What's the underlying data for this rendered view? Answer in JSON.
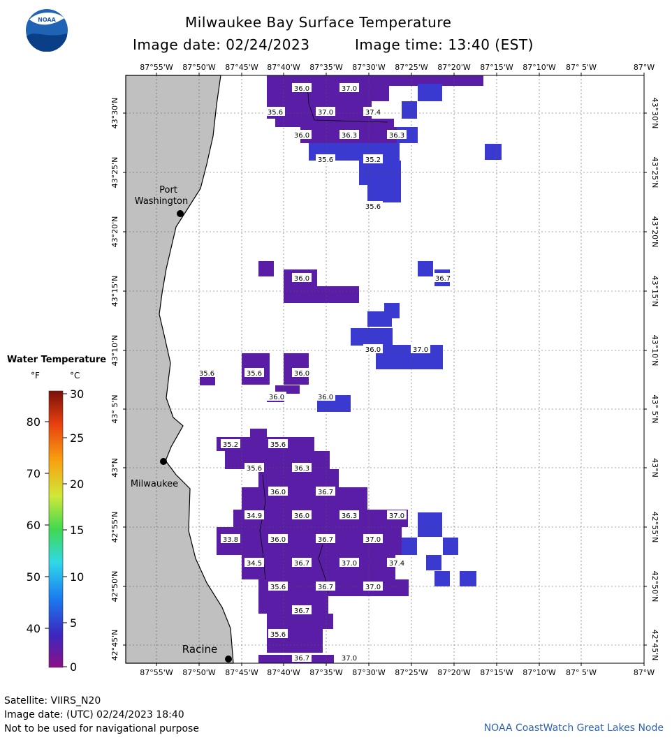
{
  "header": {
    "title": "Milwaukee Bay Surface Temperature",
    "image_date": "Image date: 02/24/2023",
    "image_time": "Image time: 13:40 (EST)"
  },
  "logo": {
    "text": "NOAA",
    "icon": "noaa-logo-icon"
  },
  "map": {
    "lon_labels": [
      "87°55'W",
      "87°50'W",
      "87°45'W",
      "87°40'W",
      "87°35'W",
      "87°30'W",
      "87°25'W",
      "87°20'W",
      "87°15'W",
      "87°10'W",
      "87° 5'W",
      "87°W"
    ],
    "lat_labels": [
      "43°30'N",
      "43°25'N",
      "43°20'N",
      "43°15'N",
      "43°10'N",
      "43° 5'N",
      "43°N",
      "42°55'N",
      "42°50'N",
      "42°45'N"
    ],
    "cities": [
      {
        "name": "Port\nWashington",
        "lines": [
          "Port",
          "Washington"
        ]
      },
      {
        "name": "Milwaukee",
        "lines": [
          "Milwaukee"
        ]
      },
      {
        "name": "Racine",
        "lines": [
          "Racine"
        ]
      }
    ],
    "temperature_labels": [
      "36.0",
      "37.0",
      "35.6",
      "37.0",
      "37.4",
      "36.0",
      "36.3",
      "36.3",
      "35.6",
      "35.2",
      "35.6",
      "36.0",
      "36.7",
      "36.0",
      "37.0",
      "35.6",
      "35.6",
      "36.0",
      "36.0",
      "36.0",
      "35.2",
      "35.6",
      "35.6",
      "36.3",
      "36.0",
      "36.7",
      "34.9",
      "36.0",
      "36.3",
      "37.0",
      "33.8",
      "36.0",
      "36.7",
      "37.0",
      "34.5",
      "36.7",
      "37.0",
      "37.4",
      "35.6",
      "36.7",
      "37.0",
      "36.7",
      "35.6",
      "36.7",
      "37.0"
    ],
    "colors": {
      "land": "#c0c0c0",
      "water": "#ffffff",
      "grid": "#555555",
      "sst_cold": "#5a1ea6",
      "sst_warm": "#3a3ad0"
    }
  },
  "colorbar": {
    "title": "Water Temperature",
    "unit_f": "°F",
    "unit_c": "°C",
    "f_ticks": [
      "80",
      "70",
      "60",
      "50",
      "40"
    ],
    "c_ticks": [
      "30",
      "25",
      "20",
      "15",
      "10",
      "5",
      "0"
    ]
  },
  "footer": {
    "satellite": "Satellite: VIIRS_N20",
    "utc_date": "Image date: (UTC) 02/24/2023  18:40",
    "disclaimer": "Not to be used for navigational purpose",
    "credit": "NOAA CoastWatch Great Lakes Node"
  }
}
